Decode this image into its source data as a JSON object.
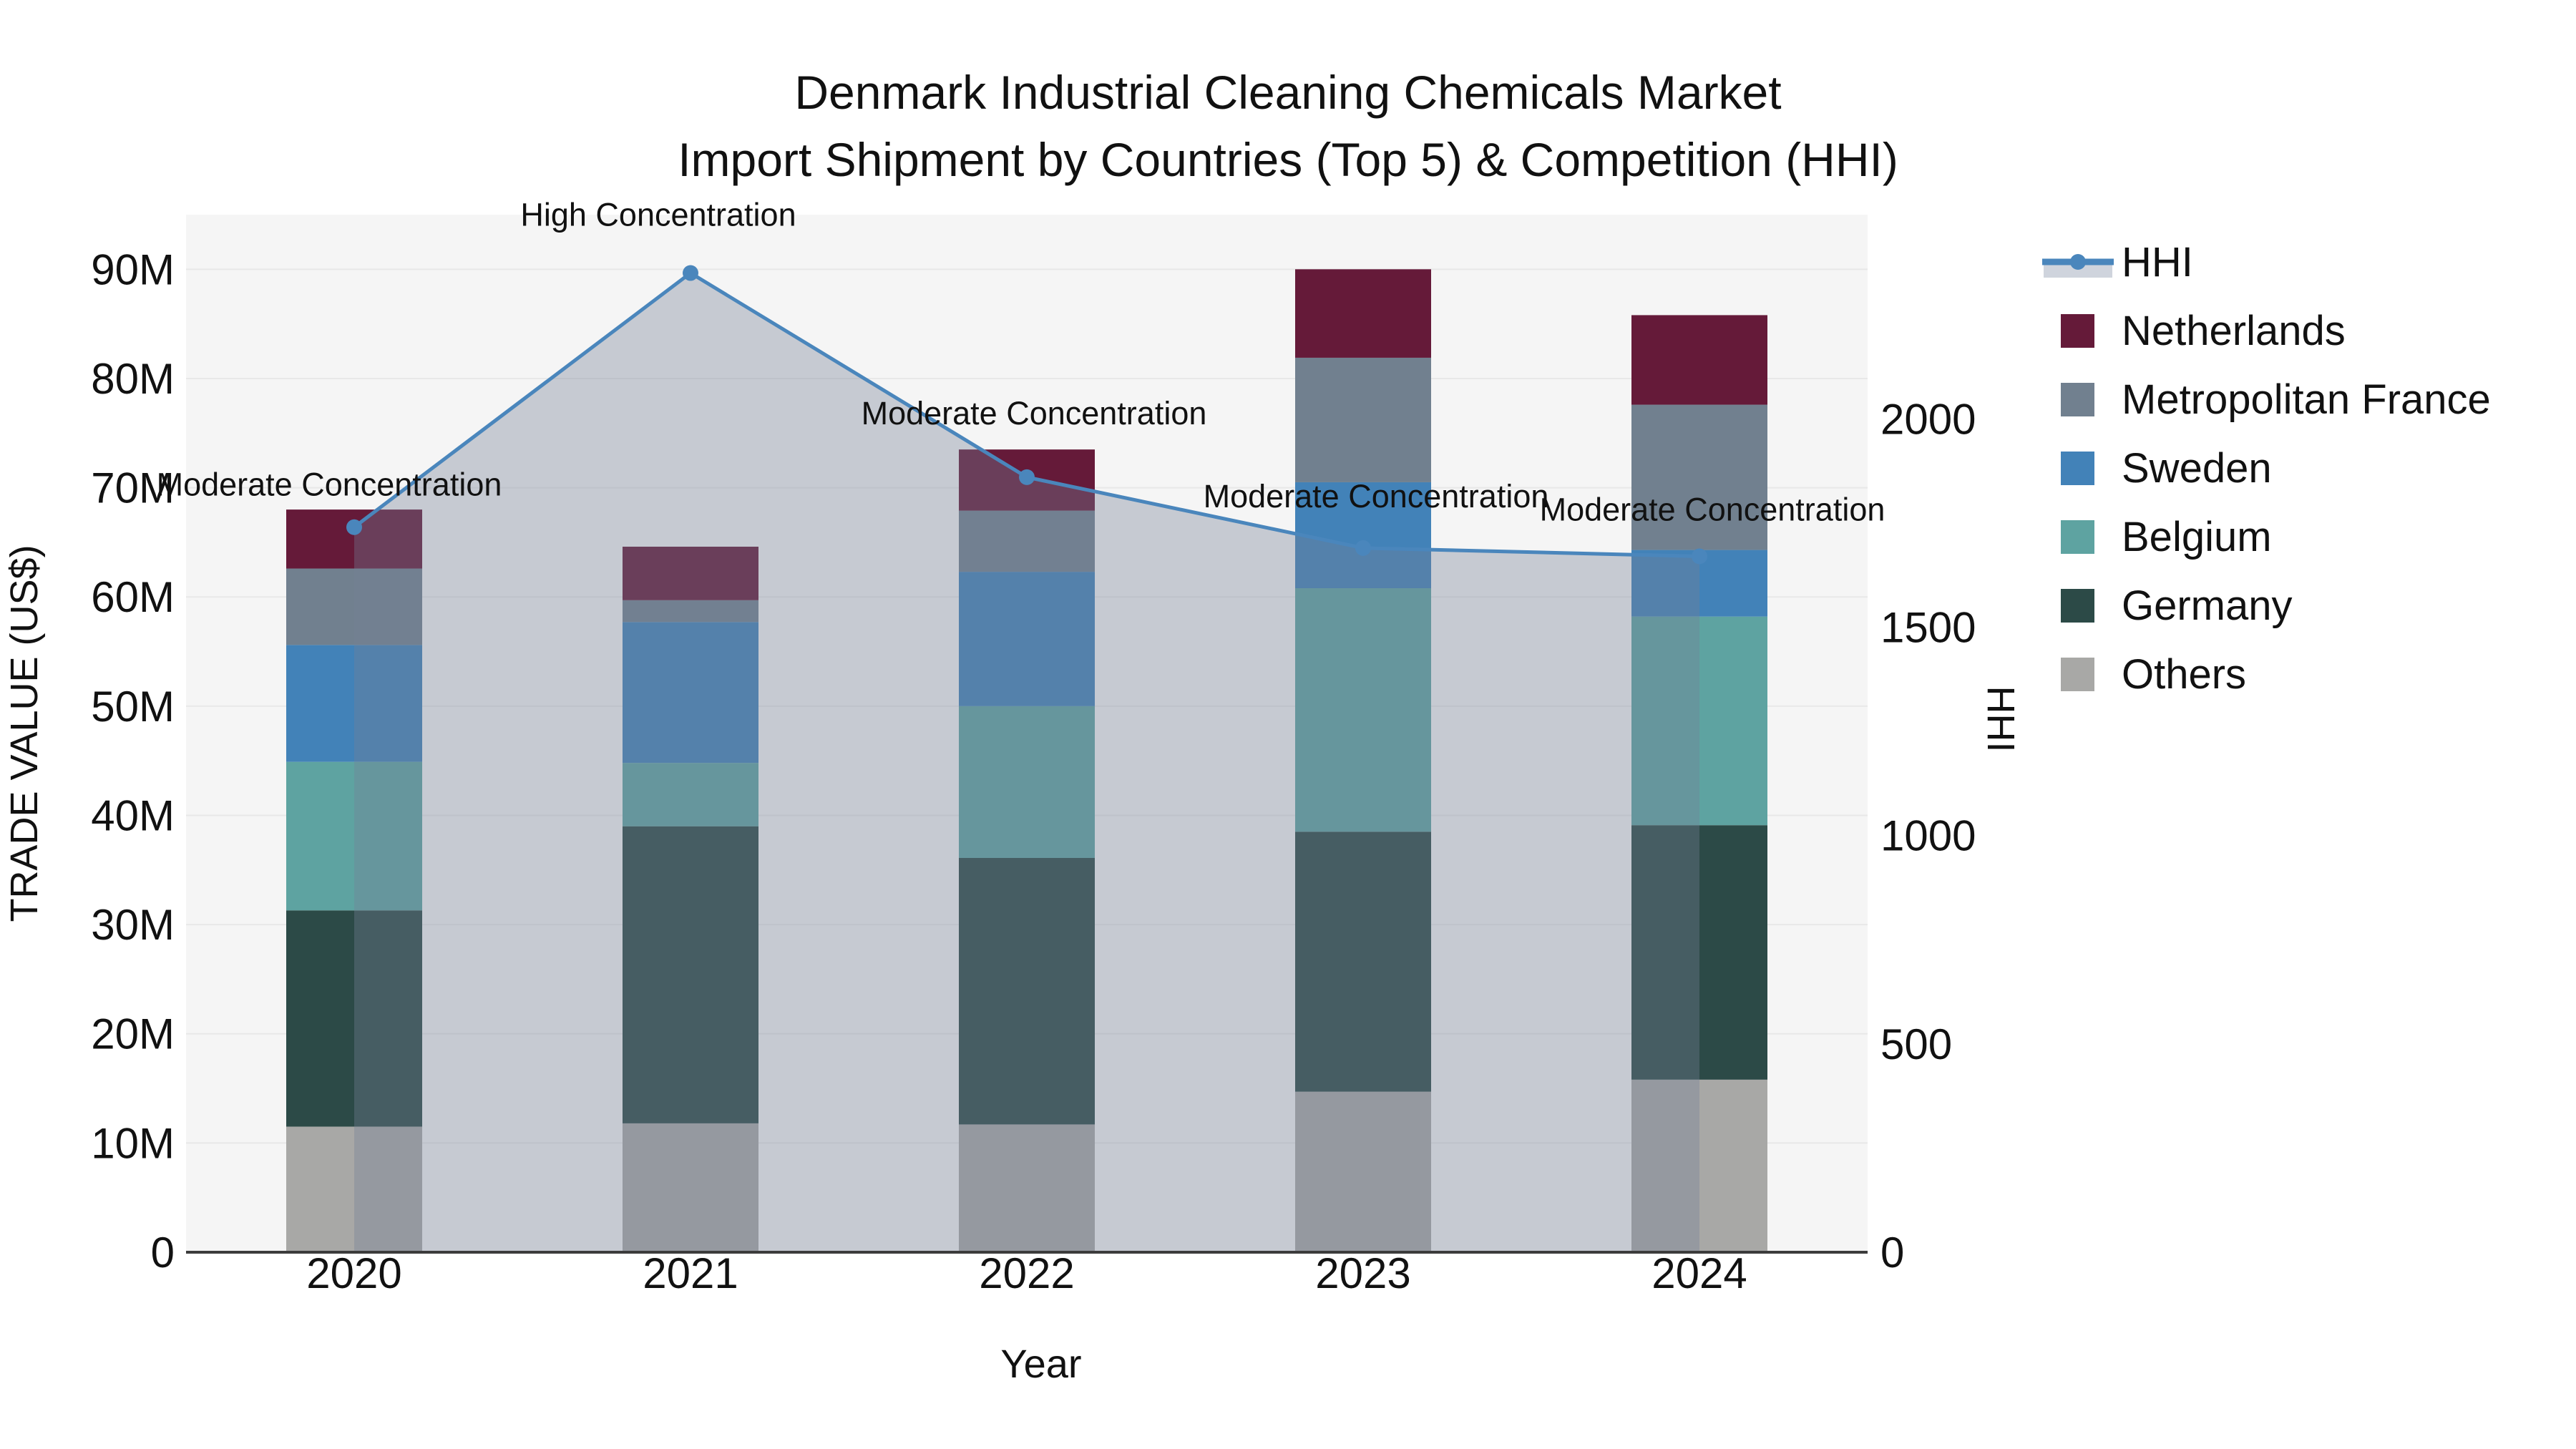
{
  "title": {
    "line1": "Denmark Industrial Cleaning Chemicals Market",
    "line2": "Import Shipment by Countries (Top 5) & Competition (HHI)"
  },
  "axes": {
    "left": {
      "title": "TRADE VALUE (US$)",
      "tick_labels": [
        "0",
        "10M",
        "20M",
        "30M",
        "40M",
        "50M",
        "60M",
        "70M",
        "80M",
        "90M"
      ],
      "tick_values": [
        0,
        10,
        20,
        30,
        40,
        50,
        60,
        70,
        80,
        90
      ],
      "range": [
        0,
        95
      ]
    },
    "right": {
      "title": "HHI",
      "tick_labels": [
        "0",
        "500",
        "1000",
        "1500",
        "2000"
      ],
      "tick_values": [
        0,
        500,
        1000,
        1500,
        2000
      ],
      "range": [
        0,
        2490
      ]
    },
    "x": {
      "title": "Year",
      "tick_labels": [
        "2020",
        "2021",
        "2022",
        "2023",
        "2024"
      ]
    }
  },
  "legend": {
    "items": [
      {
        "label": "HHI",
        "swatch": "line-area",
        "color": "#4A86BC"
      },
      {
        "label": "Netherlands",
        "swatch": "square",
        "color": "#651A39"
      },
      {
        "label": "Metropolitan France",
        "swatch": "square",
        "color": "#71808F"
      },
      {
        "label": "Sweden",
        "swatch": "square",
        "color": "#4282B8"
      },
      {
        "label": "Belgium",
        "swatch": "square",
        "color": "#5EA3A1"
      },
      {
        "label": "Germany",
        "swatch": "square",
        "color": "#2C4A47"
      },
      {
        "label": "Others",
        "swatch": "square",
        "color": "#A8A8A6"
      }
    ]
  },
  "chart_data": {
    "type": "stacked-bar + line (dual axis)",
    "categories": [
      "2020",
      "2021",
      "2022",
      "2023",
      "2024"
    ],
    "bar_unit": "Trade value (US$, millions, left axis)",
    "series": [
      {
        "name": "Others",
        "color": "#A8A8A6",
        "values": [
          11.5,
          11.8,
          11.7,
          14.7,
          15.8
        ]
      },
      {
        "name": "Germany",
        "color": "#2C4A47",
        "values": [
          19.8,
          27.2,
          24.4,
          23.8,
          23.3
        ]
      },
      {
        "name": "Belgium",
        "color": "#5EA3A1",
        "values": [
          13.6,
          5.8,
          13.9,
          22.3,
          19.1
        ]
      },
      {
        "name": "Sweden",
        "color": "#4282B8",
        "values": [
          10.7,
          12.9,
          12.3,
          9.7,
          6.1
        ]
      },
      {
        "name": "Metropolitan France",
        "color": "#71808F",
        "values": [
          7.0,
          2.0,
          5.6,
          11.4,
          13.3
        ]
      },
      {
        "name": "Netherlands",
        "color": "#651A39",
        "values": [
          5.4,
          4.9,
          5.6,
          8.1,
          8.2
        ]
      }
    ],
    "stack_totals": [
      68.0,
      64.6,
      73.5,
      90.0,
      85.8
    ],
    "line_series": {
      "name": "HHI",
      "axis": "right",
      "color": "#4A86BC",
      "values": [
        1740,
        2350,
        1860,
        1690,
        1670
      ],
      "area_fill": true
    },
    "annotations": [
      {
        "category": "2020",
        "label": "Moderate Concentration",
        "y_musd": 69.3,
        "dx": -35
      },
      {
        "category": "2021",
        "label": "High Concentration",
        "y_musd": 94.0,
        "dx": -45
      },
      {
        "category": "2022",
        "label": "Moderate Concentration",
        "y_musd": 75.8,
        "dx": 10
      },
      {
        "category": "2023",
        "label": "Moderate Concentration",
        "y_musd": 68.2,
        "dx": 18
      },
      {
        "category": "2024",
        "label": "Moderate Concentration",
        "y_musd": 67.0,
        "dx": 18
      }
    ],
    "layout_hints": {
      "grid": "horizontal only, 10M steps",
      "legend_position": "top-right outside plot",
      "area_under_line": true,
      "bars_muted_under_area": true
    }
  },
  "colors": {
    "hhi_line": "#4A86BC",
    "area_fill": "rgba(117,128,150,0.36)",
    "legend_area_sample": "#CFD4DD",
    "plot_bg": "#F5F5F5",
    "grid": "#E8E8E8",
    "axis_line": "#3C3C3C",
    "text": "#111111"
  }
}
